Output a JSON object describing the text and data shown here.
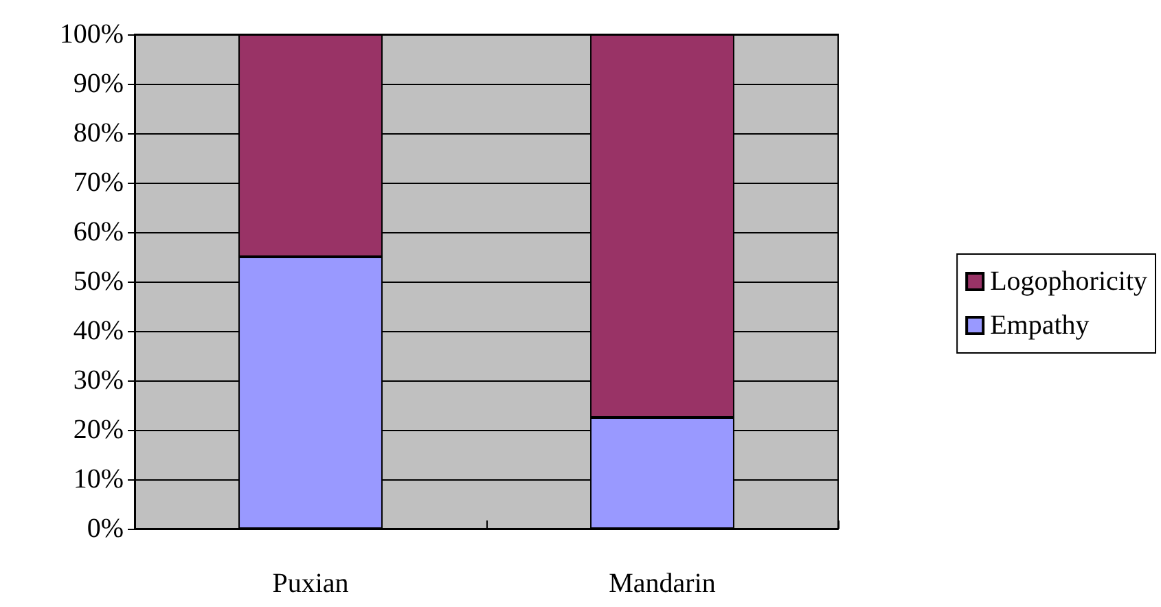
{
  "chart_data": {
    "type": "bar",
    "stacked": true,
    "categories": [
      "Puxian",
      "Mandarin"
    ],
    "series": [
      {
        "name": "Empathy",
        "color": "#9999ff",
        "values": [
          55,
          22.5
        ]
      },
      {
        "name": "Logophoricity",
        "color": "#993366",
        "values": [
          45,
          77.5
        ]
      }
    ],
    "ylim": [
      0,
      100
    ],
    "yticks": [
      {
        "value": 0,
        "label": "0%"
      },
      {
        "value": 10,
        "label": "10%"
      },
      {
        "value": 20,
        "label": "20%"
      },
      {
        "value": 30,
        "label": "30%"
      },
      {
        "value": 40,
        "label": "40%"
      },
      {
        "value": 50,
        "label": "50%"
      },
      {
        "value": 60,
        "label": "60%"
      },
      {
        "value": 70,
        "label": "70%"
      },
      {
        "value": 80,
        "label": "80%"
      },
      {
        "value": 90,
        "label": "90%"
      },
      {
        "value": 100,
        "label": "100%"
      }
    ],
    "grid": "y",
    "legend": "right"
  }
}
